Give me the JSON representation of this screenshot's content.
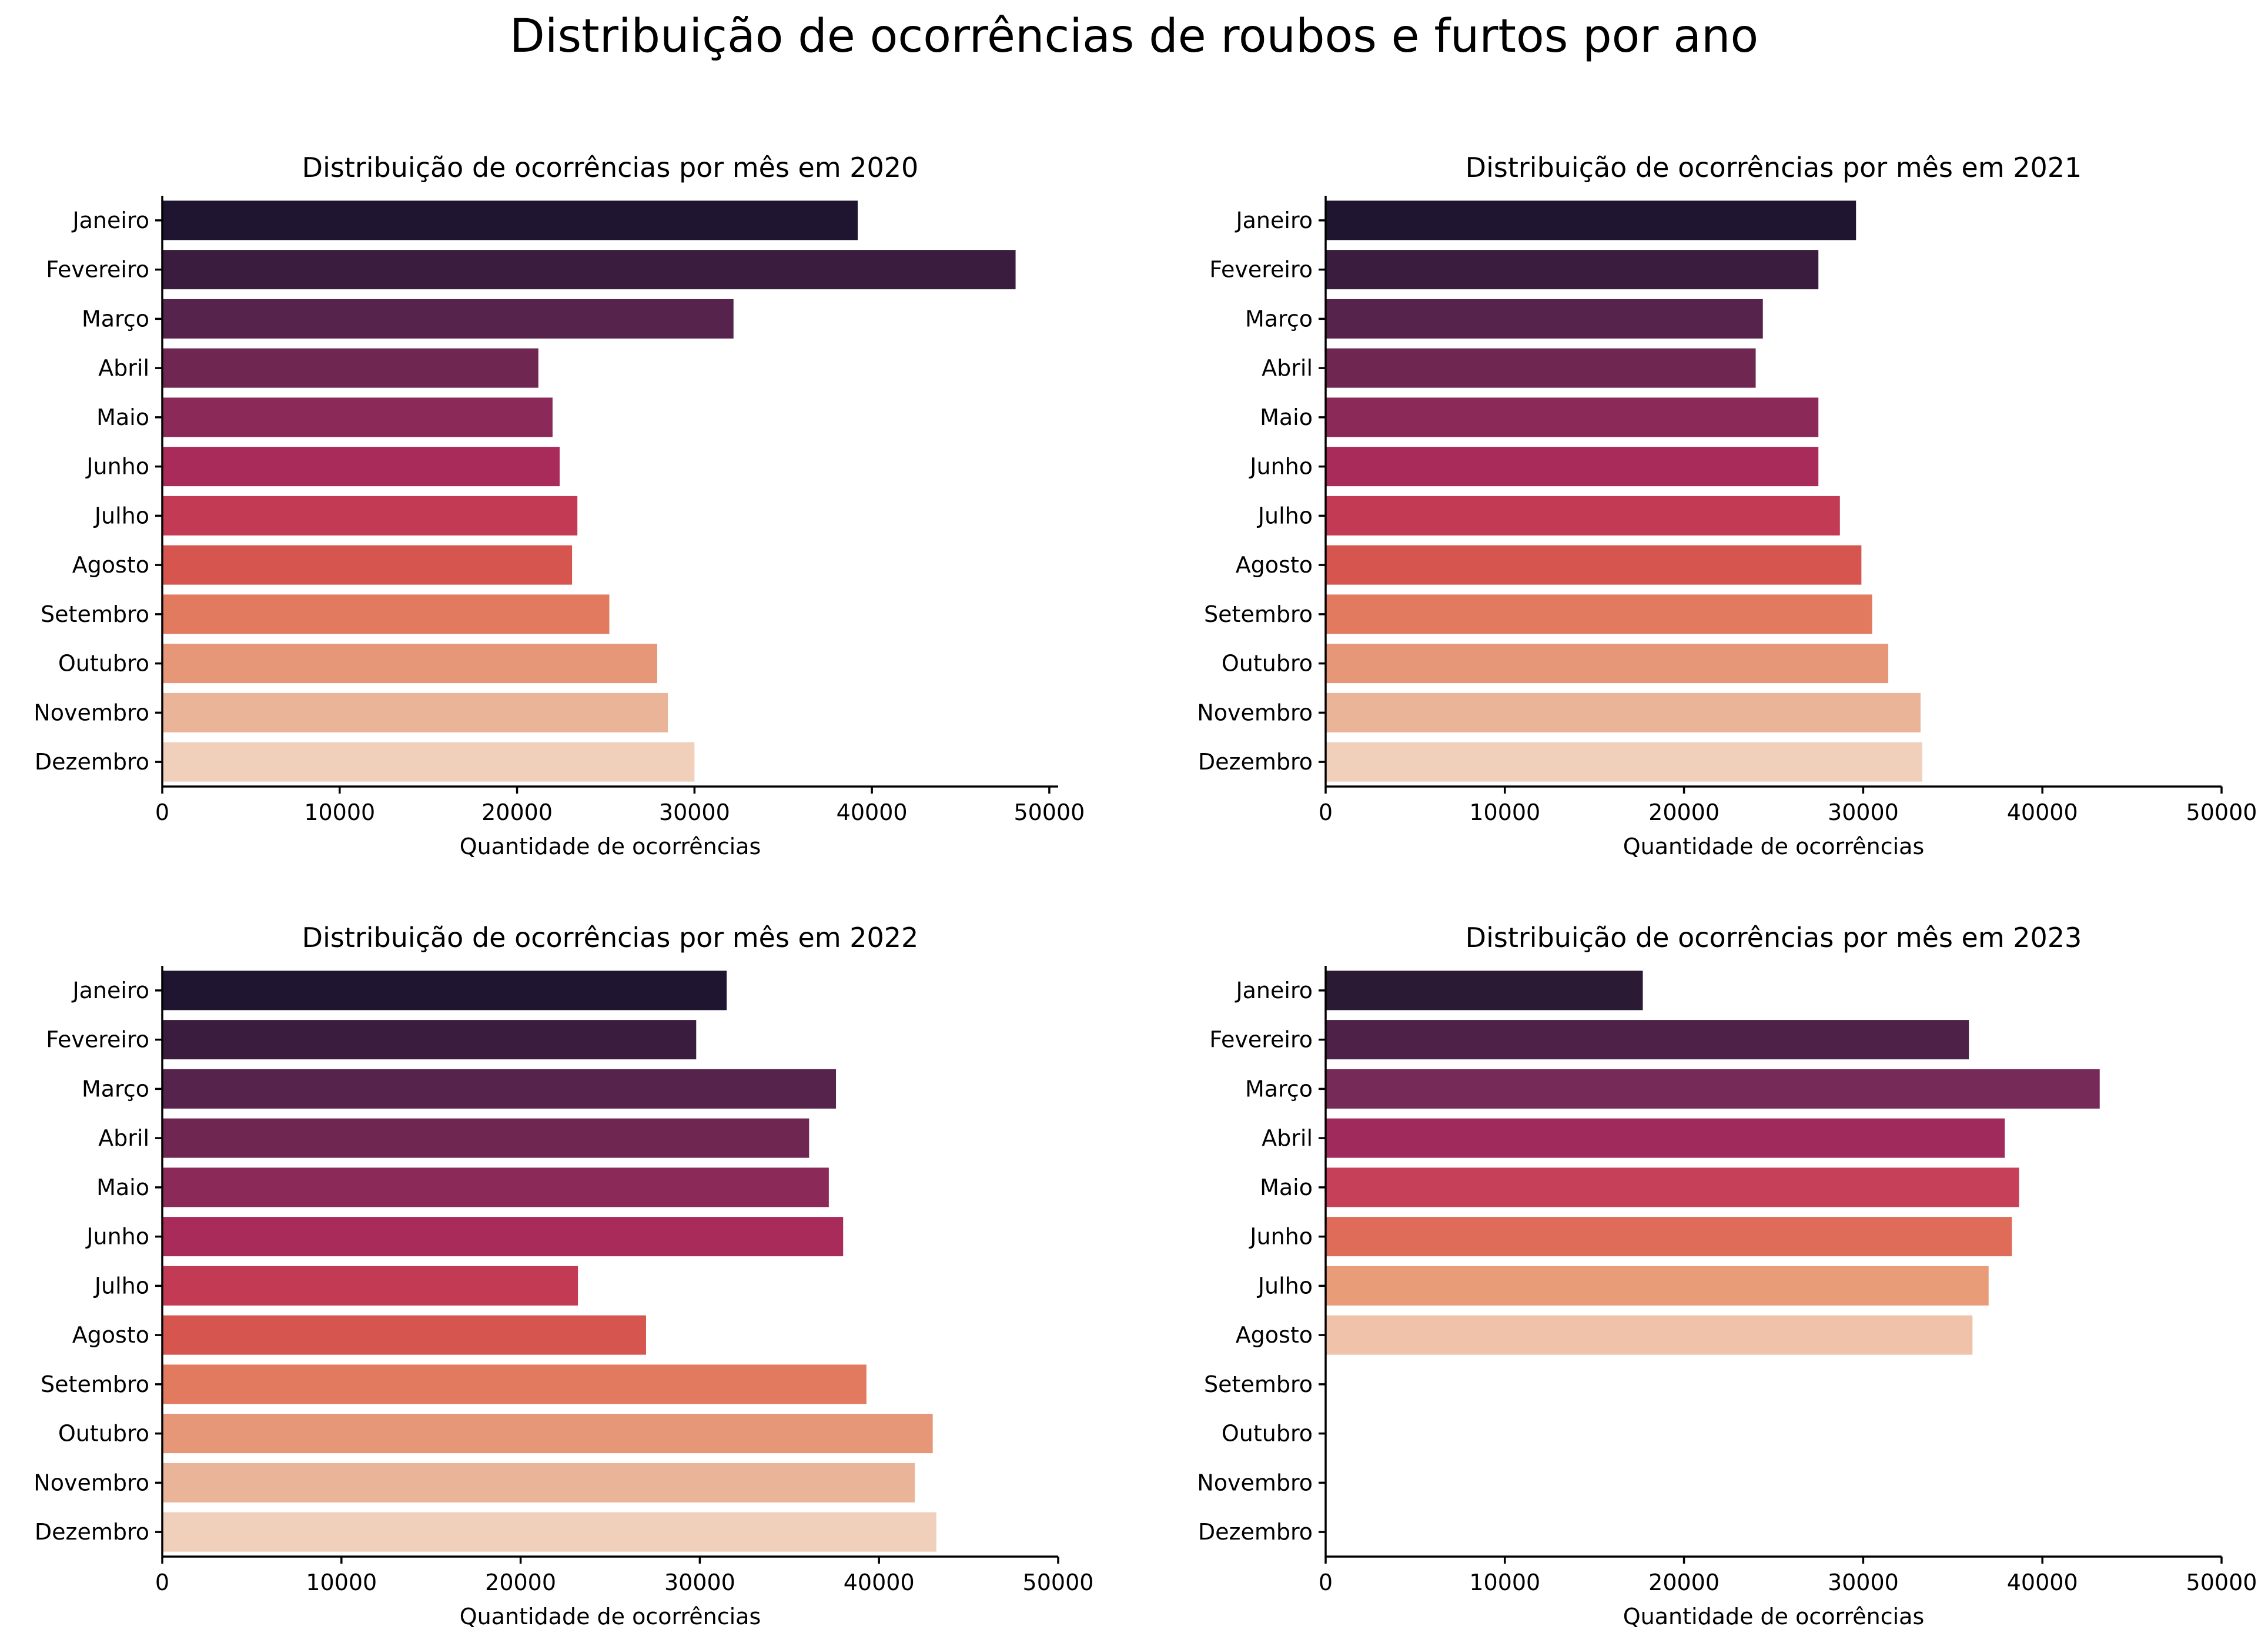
{
  "suptitle": "Distribuição de ocorrências de roubos e furtos por ano",
  "chart_data": [
    {
      "type": "bar",
      "orientation": "horizontal",
      "title": "Distribuição de ocorrências por mês em 2020",
      "xlabel": "Quantidade de ocorrências",
      "ylabel": "",
      "xlim": [
        0,
        50500
      ],
      "xticks": [
        "0",
        "10000",
        "20000",
        "30000",
        "40000",
        "50000"
      ],
      "categories": [
        "Janeiro",
        "Fevereiro",
        "Março",
        "Abril",
        "Maio",
        "Junho",
        "Julho",
        "Agosto",
        "Setembro",
        "Outubro",
        "Novembro",
        "Dezembro"
      ],
      "values": [
        39200,
        48100,
        32200,
        21200,
        22000,
        22400,
        23400,
        23100,
        25200,
        27900,
        28500,
        30000
      ],
      "colors": [
        "#1f1530",
        "#3a1d3e",
        "#55234b",
        "#6f2752",
        "#8b2a58",
        "#a92b59",
        "#c33a55",
        "#d6564f",
        "#e17a5f",
        "#e69777",
        "#e9b497",
        "#f0cfbb"
      ],
      "grid": false
    },
    {
      "type": "bar",
      "orientation": "horizontal",
      "title": "Distribuição de ocorrências por mês em 2021",
      "xlabel": "Quantidade de ocorrências",
      "ylabel": "",
      "xlim": [
        0,
        50000
      ],
      "xticks": [
        "0",
        "10000",
        "20000",
        "30000",
        "40000",
        "50000"
      ],
      "categories": [
        "Janeiro",
        "Fevereiro",
        "Março",
        "Abril",
        "Maio",
        "Junho",
        "Julho",
        "Agosto",
        "Setembro",
        "Outubro",
        "Novembro",
        "Dezembro"
      ],
      "values": [
        29600,
        27500,
        24400,
        24000,
        27500,
        27500,
        28700,
        29900,
        30500,
        31400,
        33200,
        33300
      ],
      "colors": [
        "#1f1530",
        "#3a1d3e",
        "#55234b",
        "#6f2752",
        "#8b2a58",
        "#a92b59",
        "#c33a55",
        "#d6564f",
        "#e17a5f",
        "#e69777",
        "#e9b497",
        "#f0cfbb"
      ],
      "grid": false
    },
    {
      "type": "bar",
      "orientation": "horizontal",
      "title": "Distribuição de ocorrências por mês em 2022",
      "xlabel": "Quantidade de ocorrências",
      "ylabel": "",
      "xlim": [
        0,
        50000
      ],
      "xticks": [
        "0",
        "10000",
        "20000",
        "30000",
        "40000",
        "50000"
      ],
      "categories": [
        "Janeiro",
        "Fevereiro",
        "Março",
        "Abril",
        "Maio",
        "Junho",
        "Julho",
        "Agosto",
        "Setembro",
        "Outubro",
        "Novembro",
        "Dezembro"
      ],
      "values": [
        31500,
        29800,
        37600,
        36100,
        37200,
        38000,
        23200,
        27000,
        39300,
        43000,
        42000,
        43200
      ],
      "colors": [
        "#1f1530",
        "#3a1d3e",
        "#55234b",
        "#6f2752",
        "#8b2a58",
        "#a92b59",
        "#c33a55",
        "#d6564f",
        "#e17a5f",
        "#e69777",
        "#e9b497",
        "#f0cfbb"
      ],
      "grid": false
    },
    {
      "type": "bar",
      "orientation": "horizontal",
      "title": "Distribuição de ocorrências por mês em 2023",
      "xlabel": "Quantidade de ocorrências",
      "ylabel": "",
      "xlim": [
        0,
        50000
      ],
      "xticks": [
        "0",
        "10000",
        "20000",
        "30000",
        "40000",
        "50000"
      ],
      "categories": [
        "Janeiro",
        "Fevereiro",
        "Março",
        "Abril",
        "Maio",
        "Junho",
        "Julho",
        "Agosto",
        "Setembro",
        "Outubro",
        "Novembro",
        "Dezembro"
      ],
      "values": [
        17700,
        35900,
        43200,
        37900,
        38700,
        38300,
        37000,
        36100,
        null,
        null,
        null,
        null
      ],
      "colors": [
        "#2b1a33",
        "#4e2148",
        "#752a58",
        "#a02a5b",
        "#c7405a",
        "#de6c58",
        "#e89c78",
        "#efc2a9",
        "",
        "",
        "",
        ""
      ],
      "grid": false
    }
  ]
}
